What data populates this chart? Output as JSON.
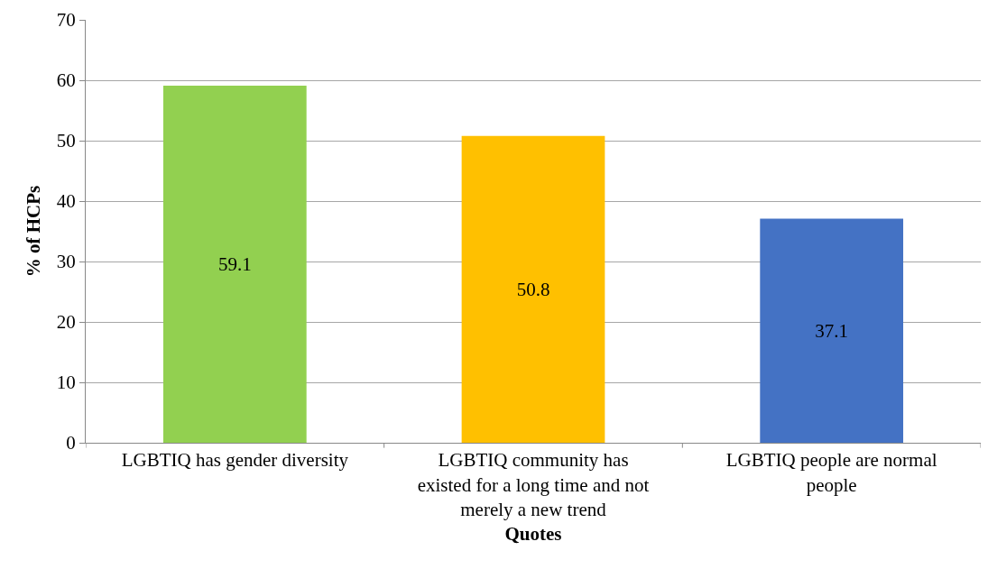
{
  "chart_data": {
    "type": "bar",
    "xlabel": "Quotes",
    "ylabel": "% of HCPs",
    "categories": [
      "LGBTIQ has gender diversity",
      "LGBTIQ community has existed for a long time and not merely a new trend",
      "LGBTIQ people are normal people"
    ],
    "values": [
      59.1,
      50.8,
      37.1
    ],
    "colors": [
      "#92d050",
      "#ffc000",
      "#4472c4"
    ],
    "ylim": [
      0,
      70
    ],
    "yticks": [
      0,
      10,
      20,
      30,
      40,
      50,
      60,
      70
    ],
    "grid": "y",
    "data_labels": true
  }
}
